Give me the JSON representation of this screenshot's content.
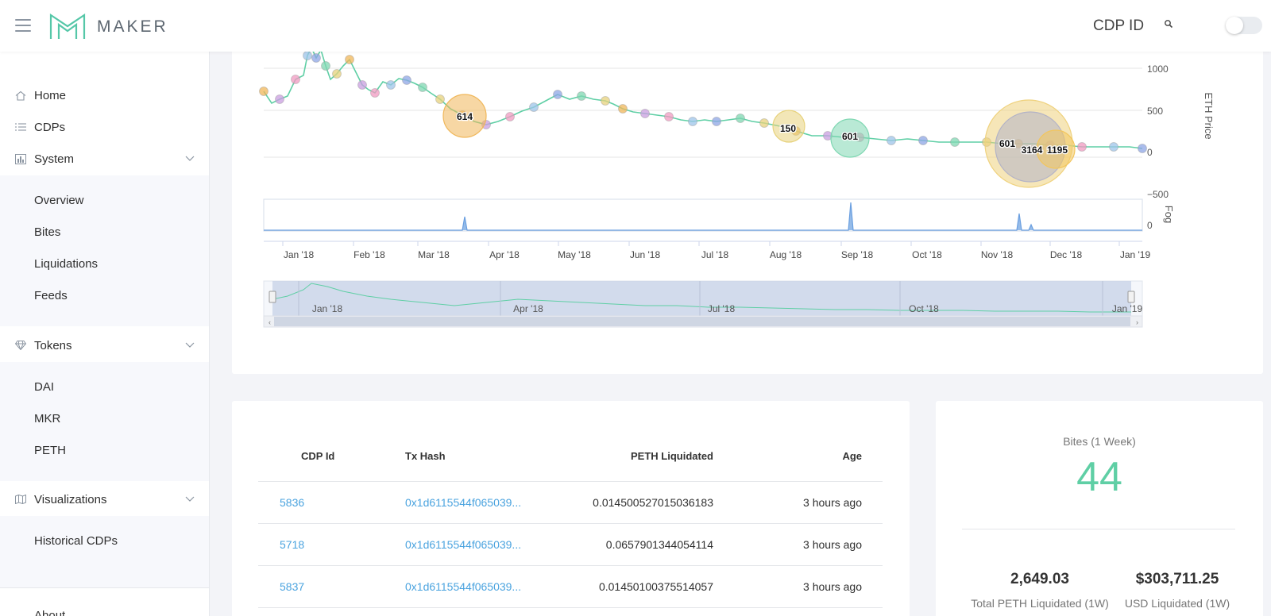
{
  "header": {
    "brand": "MAKER",
    "cdp_id_label": "CDP ID"
  },
  "sidebar": {
    "home": "Home",
    "cdps": "CDPs",
    "system": "System",
    "system_items": [
      "Overview",
      "Bites",
      "Liquidations",
      "Feeds"
    ],
    "tokens": "Tokens",
    "token_items": [
      "DAI",
      "MKR",
      "PETH"
    ],
    "visualizations": "Visualizations",
    "visualization_items": [
      "Historical CDPs"
    ],
    "about": "About"
  },
  "chart_data": {
    "type": "line",
    "description_series": "ETH price line with liquidation bubbles",
    "y_axis_right": {
      "label": "ETH Price",
      "ticks": [
        "1000",
        "500",
        "0",
        "−500"
      ]
    },
    "fog_axis": {
      "label": "Fog",
      "ticks": [
        "0"
      ]
    },
    "x_ticks": [
      "Jan '18",
      "Feb '18",
      "Mar '18",
      "Apr '18",
      "May '18",
      "Jun '18",
      "Jul '18",
      "Aug '18",
      "Sep '18",
      "Oct '18",
      "Nov '18",
      "Dec '18",
      "Jan '19"
    ],
    "navigator_ticks": [
      "Jan '18",
      "Apr '18",
      "Jul '18",
      "Oct '18",
      "Jan '19"
    ],
    "bubble_labels": [
      "614",
      "150",
      "601",
      "601",
      "3164",
      "1195"
    ],
    "line_color": "#5fcfa5",
    "volume_color": "#6a9fe0"
  },
  "table": {
    "headers": [
      "CDP Id",
      "Tx Hash",
      "PETH Liquidated",
      "Age"
    ],
    "rows": [
      {
        "cdp": "5836",
        "tx": "0x1d6115544f065039...",
        "peth": "0.014500527015036183",
        "age": "3 hours ago"
      },
      {
        "cdp": "5718",
        "tx": "0x1d6115544f065039...",
        "peth": "0.0657901344054114",
        "age": "3 hours ago"
      },
      {
        "cdp": "5837",
        "tx": "0x1d6115544f065039...",
        "peth": "0.01450100375514057",
        "age": "3 hours ago"
      }
    ]
  },
  "stats": {
    "bites_title": "Bites (1 Week)",
    "bites_value": "44",
    "peth_value": "2,649.03",
    "peth_label": "Total PETH Liquidated (1W)",
    "usd_value": "$303,711.25",
    "usd_label": "USD Liquidated (1W)",
    "accent": "#5fcfa5"
  }
}
